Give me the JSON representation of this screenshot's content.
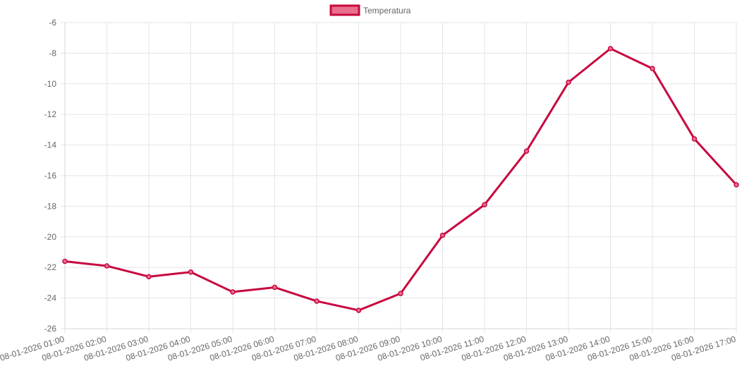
{
  "chart_data": {
    "type": "line",
    "title": "",
    "xlabel": "",
    "ylabel": "",
    "categories": [
      "08-01-2026 01:00",
      "08-01-2026 02:00",
      "08-01-2026 03:00",
      "08-01-2026 04:00",
      "08-01-2026 05:00",
      "08-01-2026 06:00",
      "08-01-2026 07:00",
      "08-01-2026 08:00",
      "08-01-2026 09:00",
      "08-01-2026 10:00",
      "08-01-2026 11:00",
      "08-01-2026 12:00",
      "08-01-2026 13:00",
      "08-01-2026 14:00",
      "08-01-2026 15:00",
      "08-01-2026 16:00",
      "08-01-2026 17:00"
    ],
    "series": [
      {
        "name": "Temperatura",
        "values": [
          -21.6,
          -21.9,
          -22.6,
          -22.3,
          -23.6,
          -23.3,
          -24.2,
          -24.8,
          -23.7,
          -19.9,
          -17.9,
          -14.4,
          -9.9,
          -7.7,
          -9.0,
          -13.6,
          -16.6
        ],
        "color": "#c8083f",
        "fill": "#e86f8d"
      }
    ],
    "ylim": [
      -26,
      -6
    ],
    "yticks": [
      "-6",
      "-8",
      "-10",
      "-12",
      "-14",
      "-16",
      "-18",
      "-20",
      "-22",
      "-24",
      "-26"
    ],
    "grid": true,
    "legend": "top-center"
  }
}
